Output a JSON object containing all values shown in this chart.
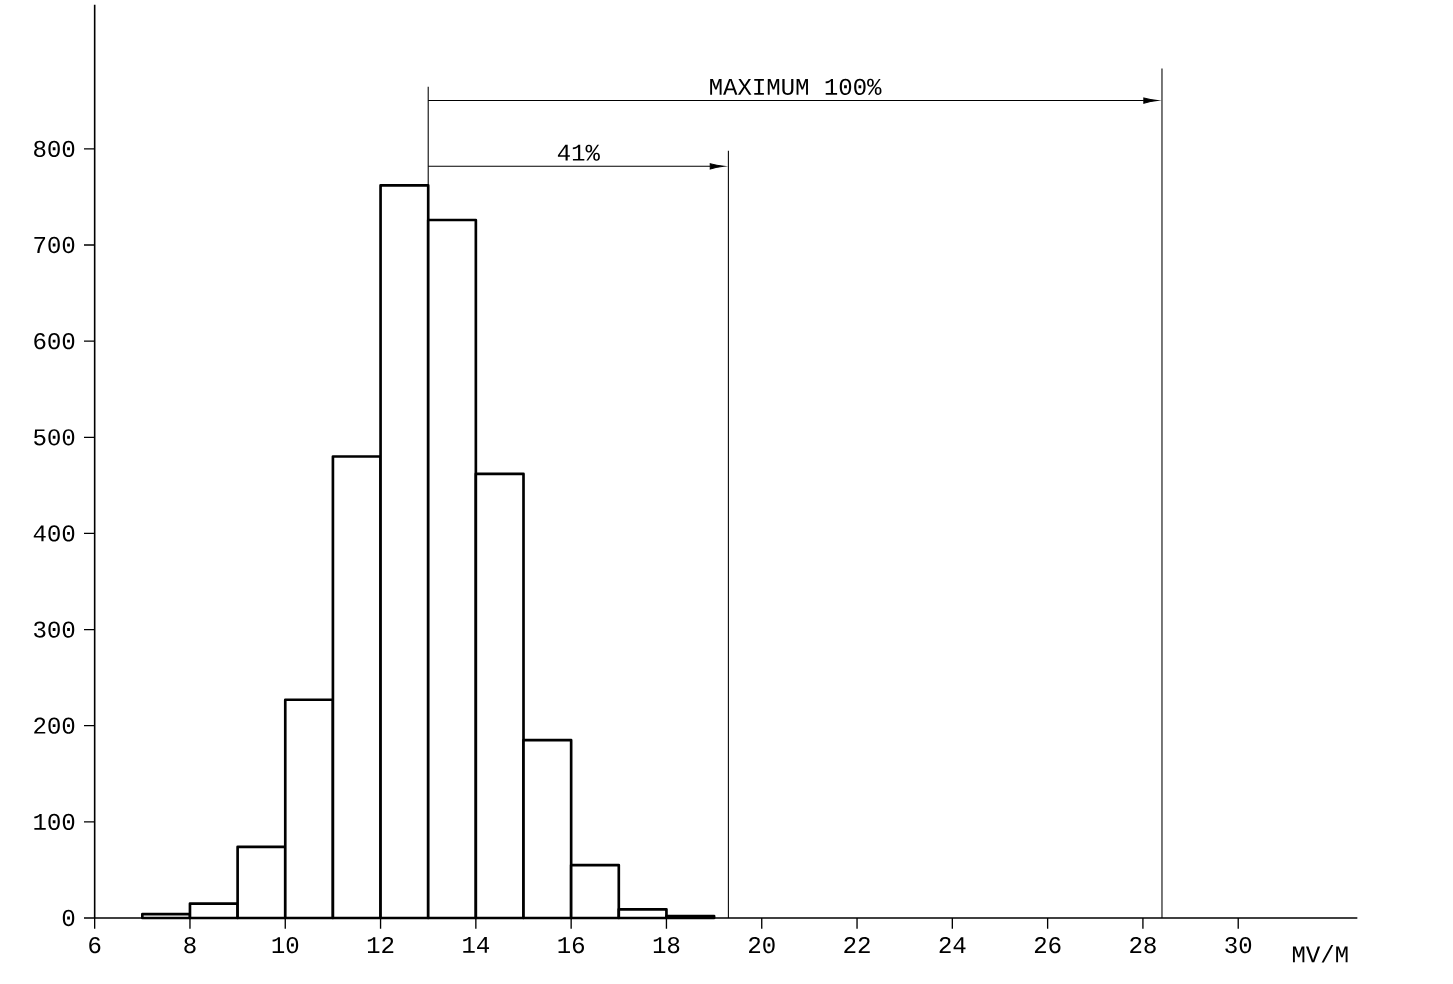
{
  "chart_data": {
    "type": "histogram",
    "bins": [
      7,
      8,
      9,
      10,
      11,
      12,
      13,
      14,
      15,
      16,
      17,
      18,
      19
    ],
    "values": [
      4,
      15,
      74,
      227,
      480,
      762,
      726,
      462,
      185,
      55,
      9,
      2
    ],
    "xlabel": "MV/M",
    "xlim": [
      6,
      32.5
    ],
    "ylim": [
      0,
      950
    ],
    "xticks": [
      6,
      8,
      10,
      12,
      14,
      16,
      18,
      20,
      22,
      24,
      26,
      28,
      30
    ],
    "yticks": [
      0,
      100,
      200,
      300,
      400,
      500,
      600,
      700,
      800
    ],
    "ref_lines": [
      {
        "axis": "x",
        "value": 13
      },
      {
        "axis": "x",
        "value": 19.3
      },
      {
        "axis": "x",
        "value": 28.4
      }
    ],
    "annotations": [
      "41%",
      "MAXIMUM   100%"
    ],
    "grid": false
  }
}
